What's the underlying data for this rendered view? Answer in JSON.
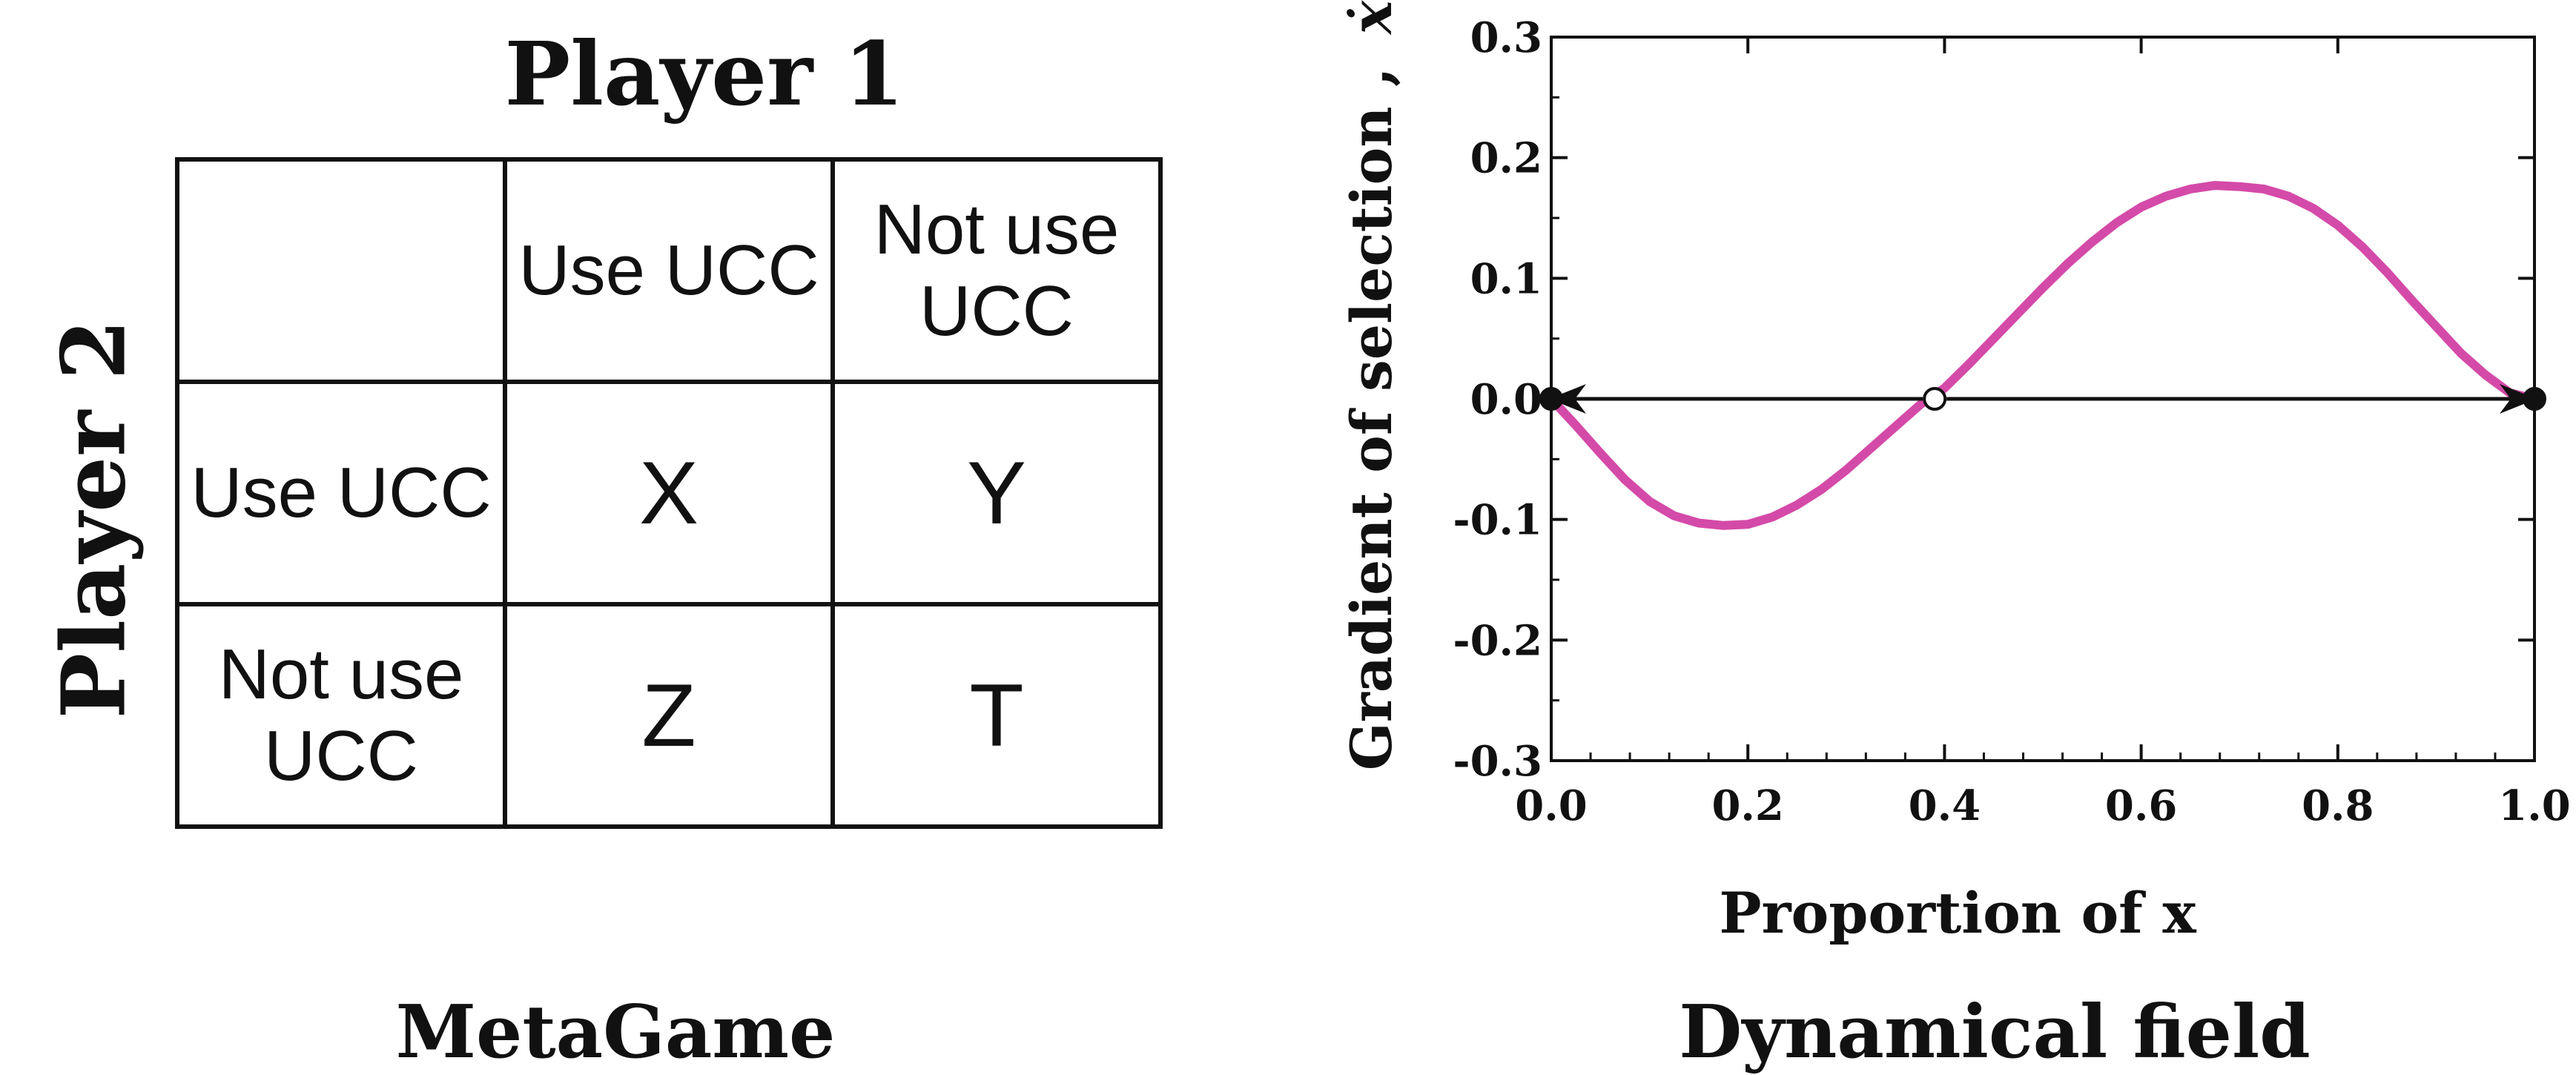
{
  "left_panel": {
    "player1_label": "Player 1",
    "player2_label": "Player 2",
    "caption": "MetaGame",
    "table": {
      "corner": "",
      "col_headers": [
        "Use UCC",
        "Not use UCC"
      ],
      "rows": [
        {
          "header": "Use UCC",
          "cells": [
            "X",
            "Y"
          ]
        },
        {
          "header": "Not use UCC",
          "cells": [
            "Z",
            "T"
          ]
        }
      ]
    }
  },
  "right_panel": {
    "caption": "Dynamical field"
  },
  "chart_data": {
    "type": "line",
    "title": "",
    "xlabel": "Proportion of x",
    "ylabel": "Gradient of selection ,",
    "ylabel_symbol": "ẋ",
    "xlim": [
      0,
      1
    ],
    "ylim": [
      -0.3,
      0.3
    ],
    "xticks": [
      "0.0",
      "0.2",
      "0.4",
      "0.6",
      "0.8",
      "1.0"
    ],
    "yticks": [
      "0.3",
      "0.2",
      "0.1",
      "0.0",
      "-0.1",
      "-0.2",
      "-0.3"
    ],
    "grid": false,
    "series_color": "#d44aa8",
    "series": [
      {
        "x": [
          0.0,
          0.025,
          0.05,
          0.075,
          0.1,
          0.125,
          0.15,
          0.175,
          0.2,
          0.225,
          0.25,
          0.275,
          0.3,
          0.325,
          0.35,
          0.375,
          0.4,
          0.425,
          0.45,
          0.475,
          0.5,
          0.525,
          0.55,
          0.575,
          0.6,
          0.625,
          0.65,
          0.675,
          0.7,
          0.725,
          0.75,
          0.775,
          0.8,
          0.825,
          0.85,
          0.875,
          0.9,
          0.925,
          0.95,
          0.975,
          1.0
        ],
        "y": [
          0.0,
          -0.022,
          -0.045,
          -0.067,
          -0.085,
          -0.097,
          -0.103,
          -0.105,
          -0.104,
          -0.098,
          -0.088,
          -0.075,
          -0.059,
          -0.041,
          -0.023,
          -0.005,
          0.009,
          0.029,
          0.05,
          0.071,
          0.092,
          0.112,
          0.13,
          0.146,
          0.159,
          0.168,
          0.174,
          0.177,
          0.176,
          0.174,
          0.168,
          0.158,
          0.144,
          0.126,
          0.105,
          0.082,
          0.06,
          0.038,
          0.02,
          0.005,
          0.0
        ]
      }
    ],
    "equilibria": [
      {
        "x": 0.0,
        "y": 0.0,
        "stable": true
      },
      {
        "x": 0.39,
        "y": 0.0,
        "stable": false
      },
      {
        "x": 1.0,
        "y": 0.0,
        "stable": true
      }
    ],
    "arrows": [
      {
        "from": 0.39,
        "to": 0.0
      },
      {
        "from": 0.39,
        "to": 1.0
      }
    ]
  }
}
